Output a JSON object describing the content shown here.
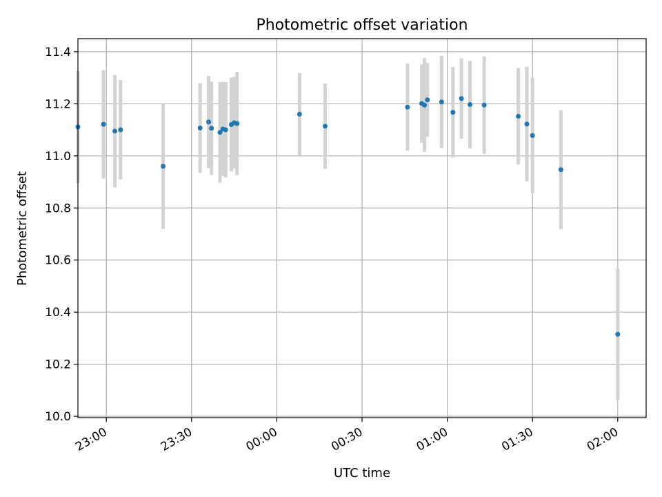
{
  "chart_data": {
    "type": "scatter",
    "title": "Photometric offset variation",
    "xlabel": "UTC time",
    "ylabel": "Photometric offset",
    "xlim": [
      "22:50",
      "02:10"
    ],
    "ylim": [
      9.995,
      11.45
    ],
    "x_ticks": [
      "23:00",
      "23:30",
      "00:00",
      "00:30",
      "01:00",
      "01:30",
      "02:00"
    ],
    "y_ticks": [
      "10.0",
      "10.2",
      "10.4",
      "10.6",
      "10.8",
      "11.0",
      "11.2",
      "11.4"
    ],
    "grid": true,
    "colors": {
      "point": "#1f77b4",
      "errorbar": "#d3d3d3",
      "grid": "#b0b0b0"
    },
    "points": [
      {
        "x": "22:50",
        "y": 11.111,
        "yerr": 0.215
      },
      {
        "x": "22:59",
        "y": 11.121,
        "yerr": 0.208
      },
      {
        "x": "23:03",
        "y": 11.095,
        "yerr": 0.216
      },
      {
        "x": "23:05",
        "y": 11.1,
        "yerr": 0.191
      },
      {
        "x": "23:20",
        "y": 10.96,
        "yerr": 0.24
      },
      {
        "x": "23:33",
        "y": 11.107,
        "yerr": 0.172
      },
      {
        "x": "23:36",
        "y": 11.13,
        "yerr": 0.177
      },
      {
        "x": "23:37",
        "y": 11.106,
        "yerr": 0.179
      },
      {
        "x": "23:40",
        "y": 11.09,
        "yerr": 0.193
      },
      {
        "x": "23:41",
        "y": 11.103,
        "yerr": 0.18
      },
      {
        "x": "23:42",
        "y": 11.1,
        "yerr": 0.183
      },
      {
        "x": "23:44",
        "y": 11.12,
        "yerr": 0.18
      },
      {
        "x": "23:45",
        "y": 11.127,
        "yerr": 0.176
      },
      {
        "x": "23:46",
        "y": 11.124,
        "yerr": 0.198
      },
      {
        "x": "00:08",
        "y": 11.16,
        "yerr": 0.158
      },
      {
        "x": "00:17",
        "y": 11.114,
        "yerr": 0.164
      },
      {
        "x": "00:46",
        "y": 11.187,
        "yerr": 0.167
      },
      {
        "x": "00:51",
        "y": 11.201,
        "yerr": 0.15
      },
      {
        "x": "00:52",
        "y": 11.195,
        "yerr": 0.18
      },
      {
        "x": "00:53",
        "y": 11.215,
        "yerr": 0.142
      },
      {
        "x": "00:58",
        "y": 11.207,
        "yerr": 0.177
      },
      {
        "x": "01:02",
        "y": 11.167,
        "yerr": 0.174
      },
      {
        "x": "01:05",
        "y": 11.22,
        "yerr": 0.154
      },
      {
        "x": "01:08",
        "y": 11.197,
        "yerr": 0.168
      },
      {
        "x": "01:13",
        "y": 11.195,
        "yerr": 0.187
      },
      {
        "x": "01:25",
        "y": 11.152,
        "yerr": 0.185
      },
      {
        "x": "01:28",
        "y": 11.122,
        "yerr": 0.22
      },
      {
        "x": "01:30",
        "y": 11.078,
        "yerr": 0.222
      },
      {
        "x": "01:40",
        "y": 10.947,
        "yerr": 0.228
      },
      {
        "x": "02:00",
        "y": 10.315,
        "yerr": 0.253
      }
    ]
  }
}
